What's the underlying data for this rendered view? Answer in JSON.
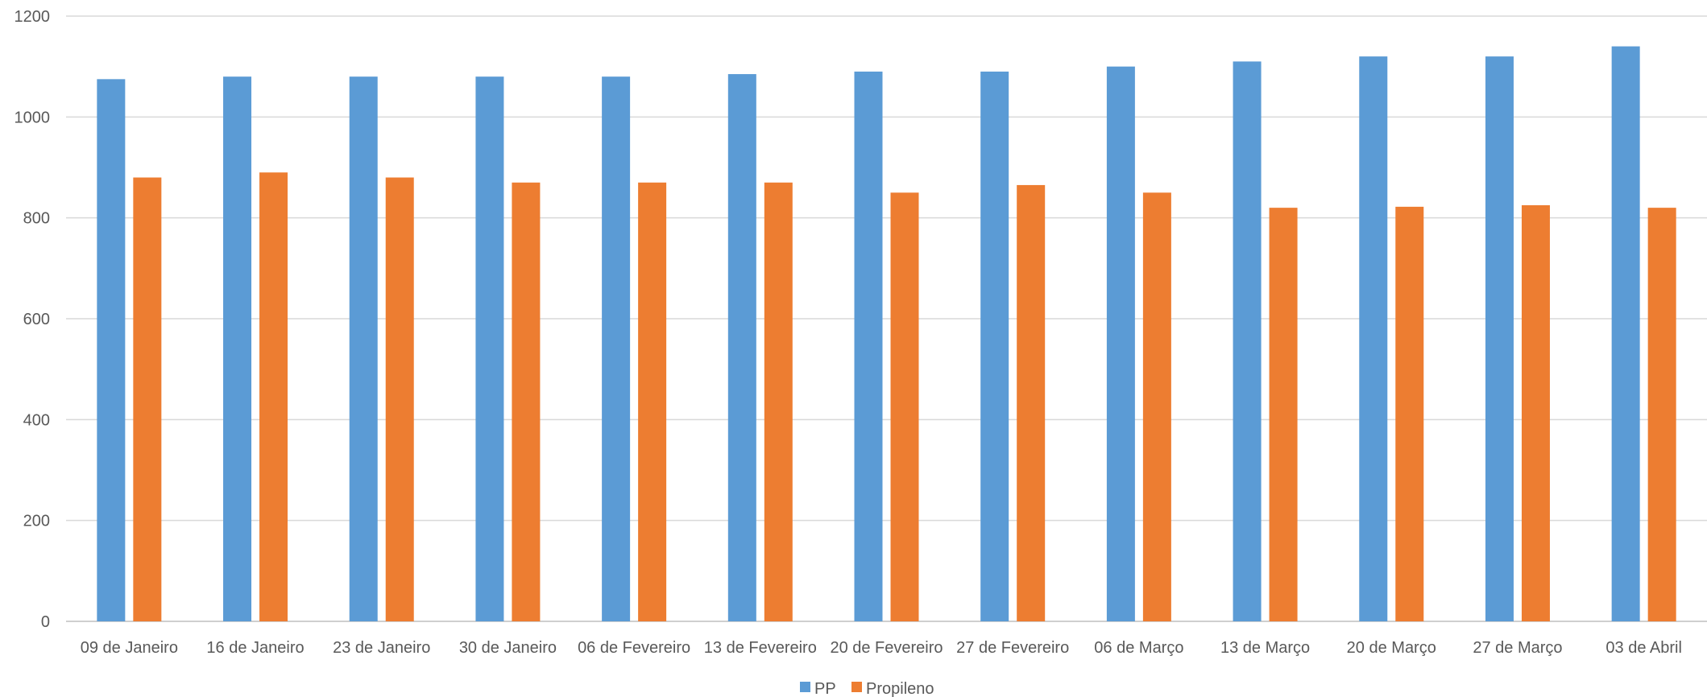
{
  "chart_data": {
    "type": "bar",
    "categories": [
      "09 de Janeiro",
      "16 de Janeiro",
      "23 de Janeiro",
      "30 de Janeiro",
      "06 de Fevereiro",
      "13 de Fevereiro",
      "20 de Fevereiro",
      "27 de Fevereiro",
      "06 de Março",
      "13 de Março",
      "20 de Março",
      "27 de Março",
      "03 de Abril"
    ],
    "series": [
      {
        "name": "PP",
        "color": "#5B9BD5",
        "values": [
          1075,
          1080,
          1080,
          1080,
          1080,
          1085,
          1090,
          1090,
          1100,
          1110,
          1120,
          1120,
          1140
        ]
      },
      {
        "name": "Propileno",
        "color": "#ED7D31",
        "values": [
          880,
          890,
          880,
          870,
          870,
          870,
          850,
          865,
          850,
          820,
          822,
          825,
          820
        ]
      }
    ],
    "yticks": [
      0,
      200,
      400,
      600,
      800,
      1000,
      1200
    ],
    "ylim": [
      0,
      1200
    ],
    "grid": true,
    "legend": "bottom",
    "title": "",
    "xlabel": "",
    "ylabel": ""
  }
}
